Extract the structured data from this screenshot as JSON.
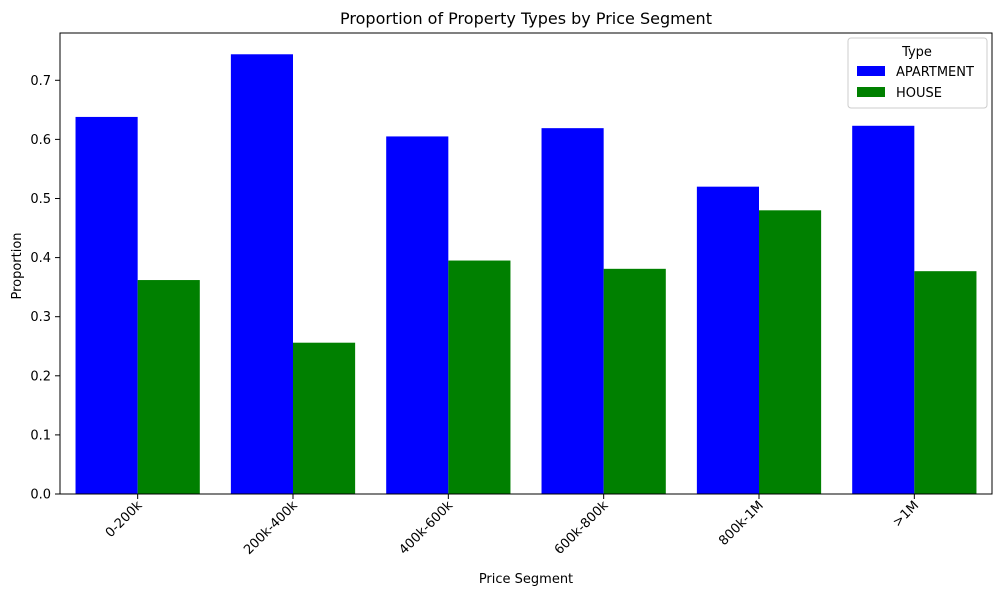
{
  "chart_data": {
    "type": "bar",
    "title": "Proportion of Property Types by Price Segment",
    "xlabel": "Price Segment",
    "ylabel": "Proportion",
    "categories": [
      "0-200k",
      "200k-400k",
      "400k-600k",
      "600k-800k",
      "800k-1M",
      ">1M"
    ],
    "series": [
      {
        "name": "APARTMENT",
        "color": "#0000ff",
        "values": [
          0.638,
          0.744,
          0.605,
          0.619,
          0.52,
          0.623
        ]
      },
      {
        "name": "HOUSE",
        "color": "#008000",
        "values": [
          0.362,
          0.256,
          0.395,
          0.381,
          0.48,
          0.377
        ]
      }
    ],
    "ylim": [
      0,
      0.78
    ],
    "yticks": [
      "0.0",
      "0.1",
      "0.2",
      "0.3",
      "0.4",
      "0.5",
      "0.6",
      "0.7"
    ],
    "xtick_rotation_deg": 45,
    "legend": {
      "title": "Type",
      "placement": "top-right"
    },
    "grid": false
  }
}
